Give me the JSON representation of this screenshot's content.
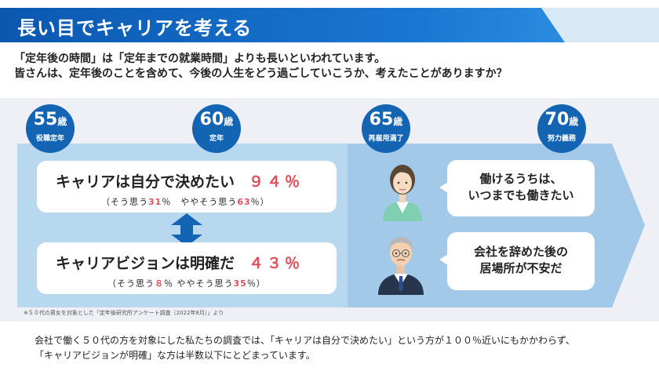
{
  "header": {
    "title": "長い目でキャリアを考える"
  },
  "intro": {
    "line1": "「定年後の時間」は「定年までの就業時間」よりも長いといわれています。",
    "line2": "皆さんは、定年後のことを含めて、今後の人生をどう過ごしていこうか、考えたことがありますか？"
  },
  "milestones": [
    {
      "age": "55",
      "unit": "歳",
      "label": "役職定年"
    },
    {
      "age": "60",
      "unit": "歳",
      "label": "定年"
    },
    {
      "age": "65",
      "unit": "歳",
      "label": "再雇用満了"
    },
    {
      "age": "70",
      "unit": "歳",
      "label": "努力義務"
    }
  ],
  "survey": [
    {
      "statement": "キャリアは自分で決めたい",
      "percent": "９４％",
      "sub_a_label": "（そう思う",
      "sub_a_value": "31",
      "sub_b_label": "％　ややそう思う",
      "sub_b_value": "63",
      "sub_end": "％）"
    },
    {
      "statement": "キャリアビジョンは明確だ",
      "percent": "４３％",
      "sub_a_label": "（そう思う",
      "sub_a_value": "８",
      "sub_b_label": "％ ややそう思う",
      "sub_b_value": "35",
      "sub_end": "％）"
    }
  ],
  "footnote": "※５０代の男女を対象とした「定年後研究所アンケート調査（2022年8月）」より",
  "voices": [
    {
      "line1": "働けるうちは、",
      "line2": "いつまでも働きたい"
    },
    {
      "line1": "会社を辞めた後の",
      "line2": "居場所が不安だ"
    }
  ],
  "summary": {
    "line1": "会社で働く５０代の方を対象にした私たちの調査では、「キャリアは自分で決めたい」という方が１００％近いにもかかわらず、",
    "line2": "「キャリアビジョンが明確」な方は半数以下にとどまっています。"
  },
  "colors": {
    "accent": "#1464b4",
    "highlight": "#e0505a",
    "panel": "#eef0f5",
    "arrow_light": "#b8d8ef",
    "arrow_dark": "#a3c9e8"
  }
}
